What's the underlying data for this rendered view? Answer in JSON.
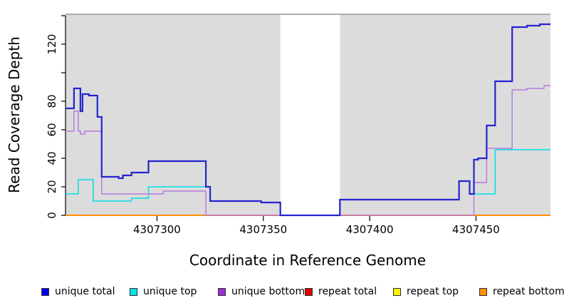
{
  "chart_data": {
    "type": "line",
    "style": "step-after",
    "title": "",
    "xlabel": "Coordinate in Reference Genome",
    "ylabel": "Read Coverage Depth",
    "x_axis": {
      "range": [
        4307257,
        4307485
      ],
      "ticks": [
        4307300,
        4307350,
        4307400,
        4307450
      ],
      "tick_labels": [
        "4307300",
        "4307350",
        "4307400",
        "4307450"
      ]
    },
    "y_axis": {
      "range": [
        0,
        141
      ],
      "ticks": [
        0,
        20,
        40,
        60,
        80,
        100,
        120,
        140
      ],
      "tick_labels": [
        "0",
        "20",
        "40",
        "60",
        "80",
        "",
        "120",
        ""
      ]
    },
    "plot_background": "#dcdcdc",
    "plot_top_border_color": "#969696",
    "no_data_gap": {
      "start": 4307358,
      "end": 4307386
    },
    "series": [
      {
        "name": "unique total",
        "color": "#2424cf",
        "line_width": 2.2,
        "points": [
          [
            4307257,
            75
          ],
          [
            4307261,
            89
          ],
          [
            4307264,
            73
          ],
          [
            4307265,
            85
          ],
          [
            4307268,
            84
          ],
          [
            4307272,
            69
          ],
          [
            4307274,
            27
          ],
          [
            4307282,
            26
          ],
          [
            4307284,
            28
          ],
          [
            4307288,
            30
          ],
          [
            4307296,
            38
          ],
          [
            4307323,
            20
          ],
          [
            4307325,
            10
          ],
          [
            4307349,
            9
          ],
          [
            4307358,
            0
          ],
          [
            4307386,
            11
          ],
          [
            4307442,
            24
          ],
          [
            4307447,
            15
          ],
          [
            4307449,
            39
          ],
          [
            4307451,
            40
          ],
          [
            4307455,
            63
          ],
          [
            4307459,
            94
          ],
          [
            4307467,
            132
          ],
          [
            4307474,
            133
          ],
          [
            4307480,
            134
          ]
        ]
      },
      {
        "name": "unique top",
        "color": "#00dde6",
        "line_width": 1.5,
        "points": [
          [
            4307257,
            15
          ],
          [
            4307263,
            25
          ],
          [
            4307270,
            10
          ],
          [
            4307288,
            12
          ],
          [
            4307296,
            20
          ],
          [
            4307325,
            10
          ],
          [
            4307349,
            9
          ],
          [
            4307358,
            0
          ],
          [
            4307386,
            11
          ],
          [
            4307442,
            24
          ],
          [
            4307447,
            15
          ],
          [
            4307459,
            46
          ]
        ]
      },
      {
        "name": "unique bottom",
        "color": "#b678dc",
        "line_width": 1.4,
        "points": [
          [
            4307257,
            59
          ],
          [
            4307261,
            73
          ],
          [
            4307263,
            59
          ],
          [
            4307264,
            57
          ],
          [
            4307266,
            59
          ],
          [
            4307274,
            15
          ],
          [
            4307303,
            17
          ],
          [
            4307323,
            0
          ],
          [
            4307449,
            23
          ],
          [
            4307455,
            47
          ],
          [
            4307467,
            88
          ],
          [
            4307474,
            89
          ],
          [
            4307482,
            91
          ]
        ]
      },
      {
        "name": "repeat total",
        "color": "#d42424",
        "line_width": 1.4,
        "points": [
          [
            4307257,
            0
          ]
        ]
      },
      {
        "name": "repeat top",
        "color": "#fff200",
        "line_width": 1.4,
        "points": [
          [
            4307257,
            0
          ]
        ]
      },
      {
        "name": "repeat bottom",
        "color": "#ff8f00",
        "line_width": 2,
        "points": [
          [
            4307257,
            0
          ]
        ]
      }
    ],
    "legend": [
      {
        "label": "unique total",
        "swatch_color": "#0000e8"
      },
      {
        "label": "unique top",
        "swatch_color": "#00e5ee"
      },
      {
        "label": "unique bottom",
        "swatch_color": "#9d2fd1"
      },
      {
        "label": "repeat total",
        "swatch_color": "#e00000"
      },
      {
        "label": "repeat top",
        "swatch_color": "#fff200"
      },
      {
        "label": "repeat bottom",
        "swatch_color": "#ff8f00"
      }
    ]
  }
}
